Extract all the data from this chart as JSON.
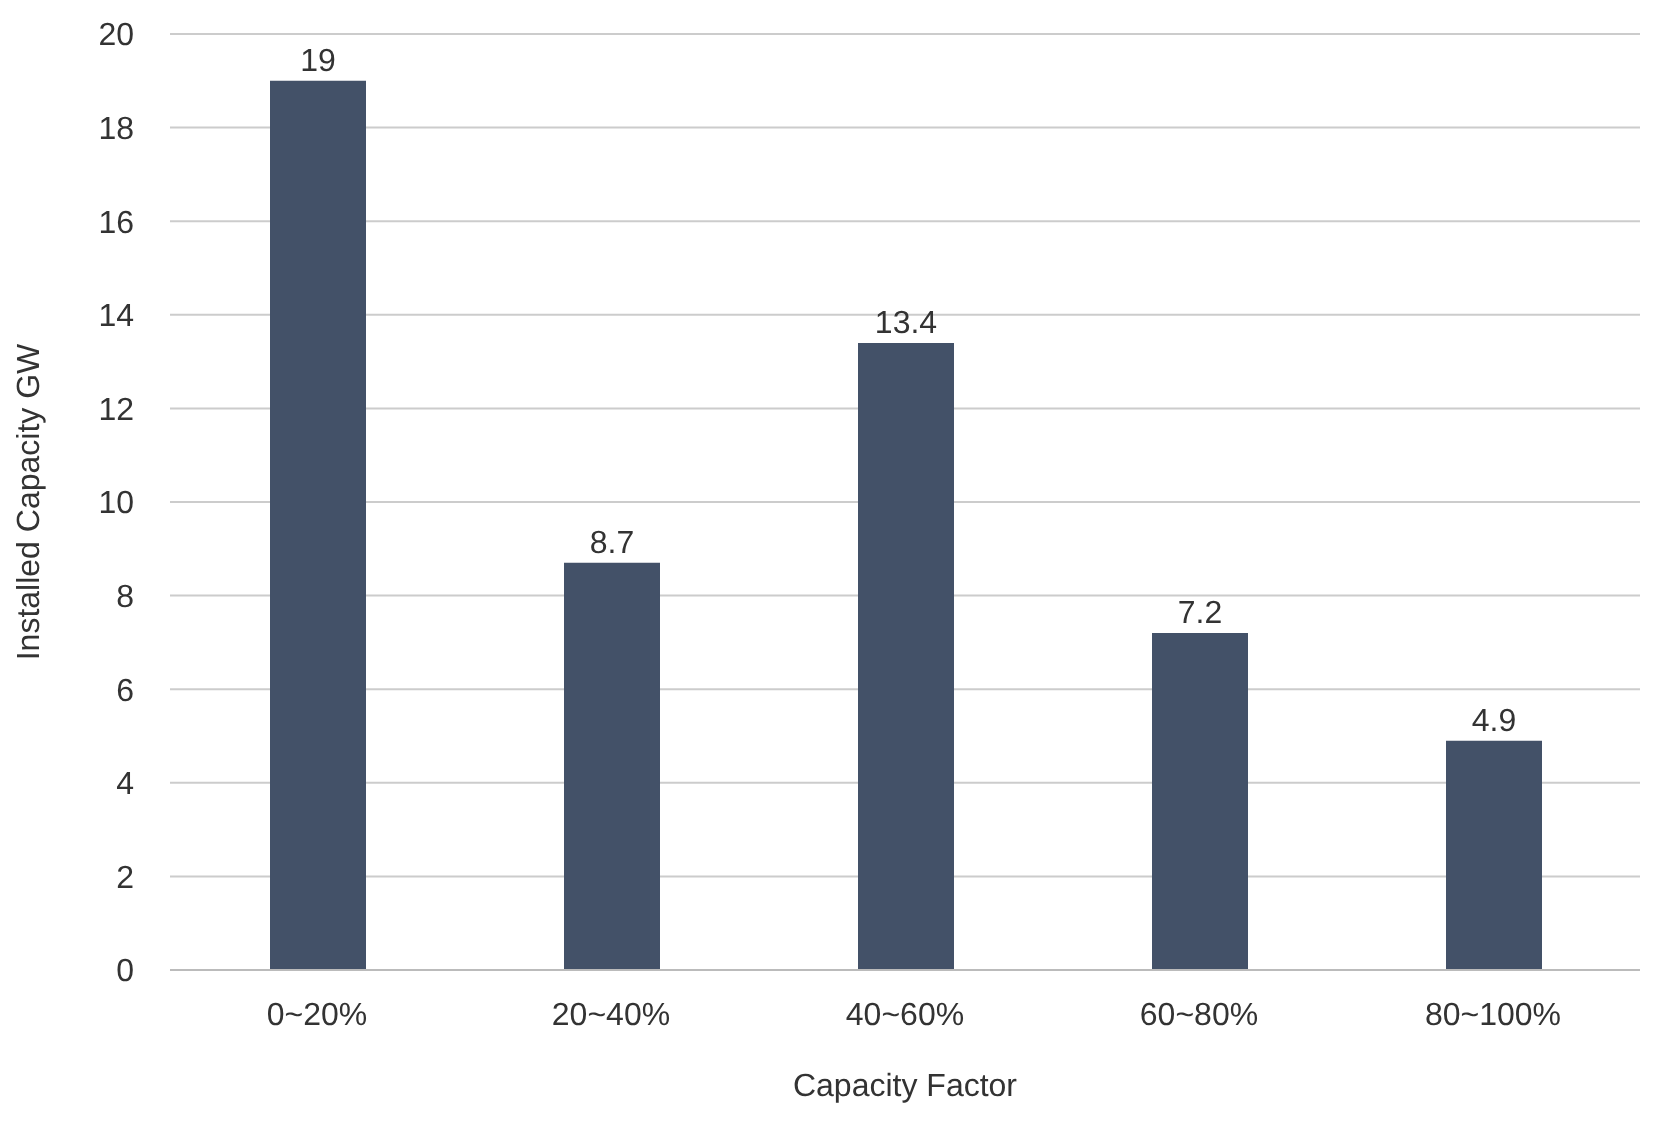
{
  "chart_data": {
    "type": "bar",
    "xlabel": "Capacity Factor",
    "ylabel": "Installed Capacity GW",
    "categories": [
      "0~20%",
      "20~40%",
      "40~60%",
      "60~80%",
      "80~100%"
    ],
    "values": [
      19,
      8.7,
      13.4,
      7.2,
      4.9
    ],
    "color": "#435168",
    "ylim": [
      0,
      20
    ],
    "yticks": [
      0,
      2,
      4,
      6,
      8,
      10,
      12,
      14,
      16,
      18,
      20
    ],
    "grid": "y",
    "data_labels": true
  }
}
